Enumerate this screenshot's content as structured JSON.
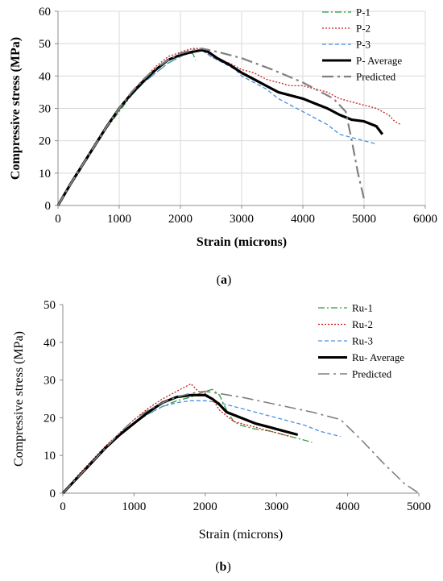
{
  "chart_data": [
    {
      "type": "line",
      "title": "",
      "xlabel": "Strain (microns)",
      "ylabel": "Compressive stress (MPa)",
      "xlim": [
        0,
        6000
      ],
      "ylim": [
        0,
        60
      ],
      "xticks": [
        0,
        1000,
        2000,
        3000,
        4000,
        5000,
        6000
      ],
      "yticks": [
        0,
        10,
        20,
        30,
        40,
        50,
        60
      ],
      "grid": true,
      "legend": "top-right",
      "caption_letter": "a",
      "series": [
        {
          "name": "P-1",
          "color": "#2e9e3e",
          "style": "dashdot",
          "width": 1.3,
          "points": [
            [
              0,
              0
            ],
            [
              200,
              6
            ],
            [
              400,
              12
            ],
            [
              600,
              18
            ],
            [
              800,
              24
            ],
            [
              1000,
              29
            ],
            [
              1200,
              34
            ],
            [
              1400,
              38
            ],
            [
              1600,
              41
            ],
            [
              1800,
              44
            ],
            [
              2000,
              46
            ],
            [
              2100,
              47
            ],
            [
              2200,
              47
            ],
            [
              2250,
              45
            ]
          ]
        },
        {
          "name": "P-2",
          "color": "#cc1a1a",
          "style": "dotted",
          "width": 1.3,
          "points": [
            [
              0,
              0
            ],
            [
              200,
              7
            ],
            [
              400,
              13
            ],
            [
              600,
              19
            ],
            [
              800,
              25
            ],
            [
              1000,
              30
            ],
            [
              1200,
              35
            ],
            [
              1400,
              39
            ],
            [
              1600,
              43
            ],
            [
              1800,
              46
            ],
            [
              1950,
              47
            ],
            [
              2100,
              48
            ],
            [
              2200,
              48.5
            ],
            [
              2300,
              48.5
            ],
            [
              2400,
              47.5
            ],
            [
              2500,
              46
            ],
            [
              2600,
              45
            ],
            [
              2800,
              44
            ],
            [
              3000,
              42
            ],
            [
              3200,
              41
            ],
            [
              3400,
              39
            ],
            [
              3600,
              38
            ],
            [
              3800,
              37
            ],
            [
              4000,
              37
            ],
            [
              4200,
              36
            ],
            [
              4400,
              35
            ],
            [
              4600,
              33
            ],
            [
              4800,
              32
            ],
            [
              5000,
              31
            ],
            [
              5200,
              30
            ],
            [
              5400,
              28
            ],
            [
              5500,
              26
            ],
            [
              5600,
              25
            ]
          ]
        },
        {
          "name": "P-3",
          "color": "#4a90e0",
          "style": "dashed",
          "width": 1.3,
          "points": [
            [
              0,
              0
            ],
            [
              200,
              6.5
            ],
            [
              400,
              12.5
            ],
            [
              600,
              18.5
            ],
            [
              800,
              24.5
            ],
            [
              1000,
              30
            ],
            [
              1200,
              34
            ],
            [
              1400,
              38
            ],
            [
              1600,
              41
            ],
            [
              1800,
              44
            ],
            [
              2000,
              46
            ],
            [
              2200,
              47.5
            ],
            [
              2350,
              48
            ],
            [
              2500,
              46
            ],
            [
              2700,
              44
            ],
            [
              2900,
              42
            ],
            [
              3000,
              40
            ],
            [
              3200,
              38
            ],
            [
              3400,
              36
            ],
            [
              3600,
              33
            ],
            [
              3800,
              31
            ],
            [
              4000,
              29
            ],
            [
              4200,
              27
            ],
            [
              4400,
              25
            ],
            [
              4600,
              22
            ],
            [
              4800,
              21
            ],
            [
              5000,
              20
            ],
            [
              5200,
              19
            ]
          ]
        },
        {
          "name": "P- Average",
          "color": "#000000",
          "style": "solid",
          "width": 3.2,
          "points": [
            [
              0,
              0
            ],
            [
              200,
              6.5
            ],
            [
              400,
              12.5
            ],
            [
              600,
              18.5
            ],
            [
              800,
              24.5
            ],
            [
              1000,
              30
            ],
            [
              1200,
              34.5
            ],
            [
              1400,
              38.5
            ],
            [
              1600,
              42
            ],
            [
              1800,
              45
            ],
            [
              2000,
              46.5
            ],
            [
              2200,
              47.5
            ],
            [
              2350,
              48
            ],
            [
              2450,
              47.5
            ],
            [
              2600,
              45.5
            ],
            [
              2800,
              43.5
            ],
            [
              3000,
              41
            ],
            [
              3200,
              39
            ],
            [
              3400,
              37
            ],
            [
              3600,
              35
            ],
            [
              3800,
              34
            ],
            [
              4000,
              33
            ],
            [
              4200,
              31.5
            ],
            [
              4400,
              30
            ],
            [
              4600,
              28
            ],
            [
              4800,
              26.5
            ],
            [
              5000,
              26
            ],
            [
              5200,
              24.5
            ],
            [
              5300,
              22
            ]
          ]
        },
        {
          "name": "Predicted",
          "color": "#808080",
          "style": "longdashdot",
          "width": 2.2,
          "points": [
            [
              0,
              0
            ],
            [
              200,
              6.5
            ],
            [
              400,
              12.5
            ],
            [
              600,
              18.5
            ],
            [
              800,
              24.5
            ],
            [
              1000,
              30
            ],
            [
              1200,
              35
            ],
            [
              1400,
              39
            ],
            [
              1600,
              42.5
            ],
            [
              1800,
              45
            ],
            [
              2000,
              47
            ],
            [
              2200,
              48
            ],
            [
              2350,
              48.5
            ],
            [
              2600,
              47.5
            ],
            [
              3000,
              45.5
            ],
            [
              3500,
              42
            ],
            [
              4000,
              38
            ],
            [
              4500,
              33
            ],
            [
              4700,
              29
            ],
            [
              4800,
              20
            ],
            [
              4900,
              10
            ],
            [
              5000,
              2
            ]
          ]
        }
      ]
    },
    {
      "type": "line",
      "title": "",
      "xlabel": "Strain (microns)",
      "ylabel": "Compressive stress (MPa)",
      "xlim": [
        0,
        5000
      ],
      "ylim": [
        0,
        50
      ],
      "xticks": [
        0,
        1000,
        2000,
        3000,
        4000,
        5000
      ],
      "yticks": [
        0,
        10,
        20,
        30,
        40,
        50
      ],
      "grid": false,
      "legend": "top-right",
      "caption_letter": "b",
      "series": [
        {
          "name": "Ru-1",
          "color": "#2e9e3e",
          "style": "dashdot",
          "width": 1.3,
          "points": [
            [
              0,
              0
            ],
            [
              200,
              4
            ],
            [
              400,
              8
            ],
            [
              600,
              12
            ],
            [
              800,
              15.5
            ],
            [
              1000,
              18.5
            ],
            [
              1200,
              21
            ],
            [
              1400,
              23
            ],
            [
              1600,
              24.5
            ],
            [
              1800,
              25.5
            ],
            [
              2000,
              27
            ],
            [
              2100,
              27.5
            ],
            [
              2200,
              26
            ],
            [
              2300,
              22
            ],
            [
              2400,
              19
            ],
            [
              2500,
              18
            ],
            [
              2700,
              17
            ],
            [
              2900,
              16.5
            ],
            [
              3100,
              15.5
            ],
            [
              3300,
              14.5
            ],
            [
              3500,
              13.5
            ]
          ]
        },
        {
          "name": "Ru-2",
          "color": "#cc1a1a",
          "style": "dotted",
          "width": 1.3,
          "points": [
            [
              0,
              0
            ],
            [
              200,
              4.5
            ],
            [
              400,
              8.5
            ],
            [
              600,
              12.5
            ],
            [
              800,
              16
            ],
            [
              1000,
              19.5
            ],
            [
              1200,
              22.5
            ],
            [
              1400,
              25
            ],
            [
              1600,
              27
            ],
            [
              1750,
              28.5
            ],
            [
              1800,
              29
            ],
            [
              1900,
              27
            ],
            [
              2000,
              26.5
            ],
            [
              2100,
              25
            ],
            [
              2200,
              22
            ],
            [
              2400,
              19
            ],
            [
              2600,
              18
            ],
            [
              2800,
              17
            ],
            [
              3000,
              16
            ],
            [
              3200,
              15
            ]
          ]
        },
        {
          "name": "Ru-3",
          "color": "#4a90e0",
          "style": "dashed",
          "width": 1.3,
          "points": [
            [
              0,
              0
            ],
            [
              200,
              4
            ],
            [
              400,
              8
            ],
            [
              600,
              12
            ],
            [
              800,
              15.5
            ],
            [
              1000,
              18.5
            ],
            [
              1200,
              21
            ],
            [
              1400,
              23
            ],
            [
              1600,
              24
            ],
            [
              1800,
              24.5
            ],
            [
              2000,
              24.5
            ],
            [
              2200,
              24
            ],
            [
              2400,
              23
            ],
            [
              2600,
              22
            ],
            [
              2800,
              21
            ],
            [
              3000,
              20
            ],
            [
              3200,
              19
            ],
            [
              3400,
              18
            ],
            [
              3600,
              16.5
            ],
            [
              3800,
              15.5
            ],
            [
              3900,
              15
            ]
          ]
        },
        {
          "name": "Ru- Average",
          "color": "#000000",
          "style": "solid",
          "width": 3.2,
          "points": [
            [
              0,
              0
            ],
            [
              200,
              4
            ],
            [
              400,
              8
            ],
            [
              600,
              12
            ],
            [
              800,
              15.5
            ],
            [
              1000,
              18.5
            ],
            [
              1200,
              21.5
            ],
            [
              1400,
              24
            ],
            [
              1600,
              25.5
            ],
            [
              1800,
              26
            ],
            [
              2000,
              26
            ],
            [
              2100,
              25
            ],
            [
              2200,
              23.5
            ],
            [
              2300,
              21.5
            ],
            [
              2500,
              20
            ],
            [
              2700,
              18.5
            ],
            [
              2900,
              17.5
            ],
            [
              3100,
              16.5
            ],
            [
              3300,
              15.5
            ]
          ]
        },
        {
          "name": "Predicted",
          "color": "#808080",
          "style": "longdashdot",
          "width": 1.6,
          "points": [
            [
              0,
              0
            ],
            [
              200,
              4
            ],
            [
              400,
              8
            ],
            [
              600,
              12
            ],
            [
              800,
              16
            ],
            [
              1000,
              19.5
            ],
            [
              1200,
              22
            ],
            [
              1400,
              24
            ],
            [
              1600,
              25.5
            ],
            [
              1800,
              26.5
            ],
            [
              2000,
              27
            ],
            [
              2500,
              25.5
            ],
            [
              3000,
              23.5
            ],
            [
              3500,
              21.5
            ],
            [
              3900,
              19.5
            ],
            [
              4200,
              14
            ],
            [
              4500,
              8
            ],
            [
              4800,
              2.5
            ],
            [
              5000,
              0
            ]
          ]
        }
      ]
    }
  ]
}
